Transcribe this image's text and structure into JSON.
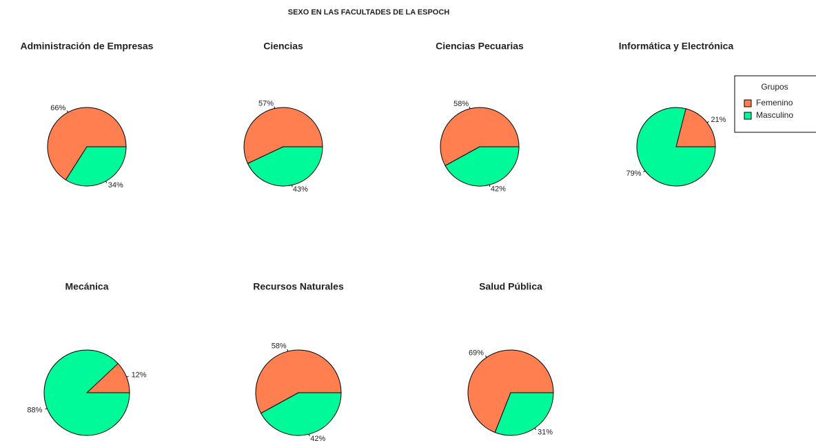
{
  "title": "SEXO EN LAS FACULTADES DE LA ESPOCH",
  "legend": {
    "title": "Grupos",
    "position": "right"
  },
  "chart_data": [
    {
      "type": "pie",
      "title": "Administración de Empresas",
      "categories": [
        "Femenino",
        "Masculino"
      ],
      "values": [
        66,
        34
      ],
      "value_labels": [
        "66%",
        "34%"
      ],
      "colors": [
        "#FF7F50",
        "#00FA9A"
      ]
    },
    {
      "type": "pie",
      "title": "Ciencias",
      "categories": [
        "Femenino",
        "Masculino"
      ],
      "values": [
        57,
        43
      ],
      "value_labels": [
        "57%",
        "43%"
      ],
      "colors": [
        "#FF7F50",
        "#00FA9A"
      ]
    },
    {
      "type": "pie",
      "title": "Ciencias Pecuarias",
      "categories": [
        "Femenino",
        "Masculino"
      ],
      "values": [
        58,
        42
      ],
      "value_labels": [
        "58%",
        "42%"
      ],
      "colors": [
        "#FF7F50",
        "#00FA9A"
      ]
    },
    {
      "type": "pie",
      "title": "Informática y Electrónica",
      "categories": [
        "Femenino",
        "Masculino"
      ],
      "values": [
        21,
        79
      ],
      "value_labels": [
        "21%",
        "79%"
      ],
      "colors": [
        "#FF7F50",
        "#00FA9A"
      ]
    },
    {
      "type": "pie",
      "title": "Mecánica",
      "categories": [
        "Femenino",
        "Masculino"
      ],
      "values": [
        12,
        88
      ],
      "value_labels": [
        "12%",
        "88%"
      ],
      "colors": [
        "#FF7F50",
        "#00FA9A"
      ]
    },
    {
      "type": "pie",
      "title": "Recursos Naturales",
      "categories": [
        "Femenino",
        "Masculino"
      ],
      "values": [
        58,
        42
      ],
      "value_labels": [
        "58%",
        "42%"
      ],
      "colors": [
        "#FF7F50",
        "#00FA9A"
      ]
    },
    {
      "type": "pie",
      "title": "Salud Pública",
      "categories": [
        "Femenino",
        "Masculino"
      ],
      "values": [
        69,
        31
      ],
      "value_labels": [
        "69%",
        "31%"
      ],
      "colors": [
        "#FF7F50",
        "#00FA9A"
      ]
    }
  ]
}
